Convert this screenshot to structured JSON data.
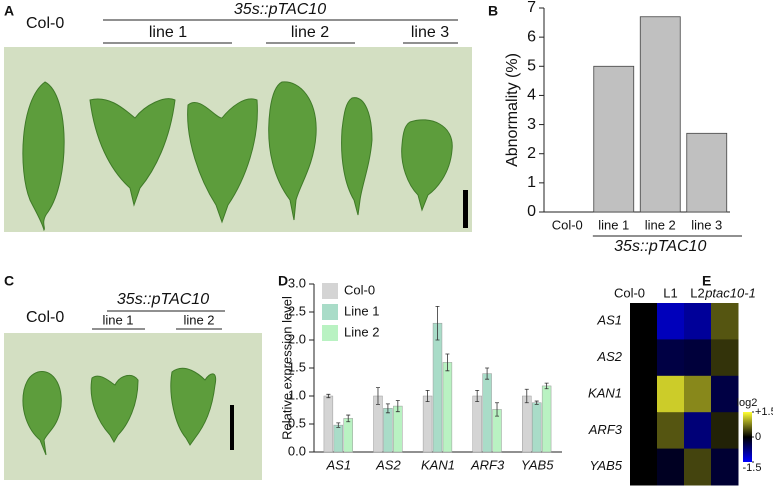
{
  "panels": {
    "A": {
      "label": "A",
      "control": "Col-0",
      "construct": "35s::pTAC10",
      "lines": [
        "line 1",
        "line 2",
        "line 3"
      ]
    },
    "C": {
      "label": "C",
      "control": "Col-0",
      "construct": "35s::pTAC10",
      "lines": [
        "line 1",
        "line 2"
      ]
    }
  },
  "chart_data": [
    {
      "type": "bar",
      "panel_label": "B",
      "ylabel": "Abnormality (%)",
      "categories": [
        "Col-0",
        "line 1",
        "line 2",
        "line 3"
      ],
      "values": [
        0,
        5,
        6.7,
        2.7
      ],
      "x_group_label": "35s::pTAC10",
      "color": "#c0c0c0",
      "ylim": [
        0,
        7
      ],
      "yticks": [
        0,
        1,
        2,
        3,
        4,
        5,
        6,
        7
      ]
    },
    {
      "type": "bar",
      "panel_label": "D",
      "ylabel": "Relative expression level",
      "categories": [
        "AS1",
        "AS2",
        "KAN1",
        "ARF3",
        "YAB5"
      ],
      "series": [
        {
          "name": "Col-0",
          "color": "#d4d4d4",
          "values": [
            1.0,
            1.0,
            1.0,
            1.0,
            1.0
          ],
          "errors": [
            0.03,
            0.15,
            0.1,
            0.1,
            0.12
          ]
        },
        {
          "name": "Line 1",
          "color": "#a9dcc8",
          "values": [
            0.48,
            0.78,
            2.3,
            1.4,
            0.88
          ],
          "errors": [
            0.04,
            0.08,
            0.3,
            0.1,
            0.03
          ]
        },
        {
          "name": "Line 2",
          "color": "#b9f2c2",
          "values": [
            0.6,
            0.82,
            1.6,
            0.76,
            1.18
          ],
          "errors": [
            0.06,
            0.1,
            0.15,
            0.12,
            0.05
          ]
        }
      ],
      "ylim": [
        0,
        3
      ],
      "yticks": [
        {
          "value": 0,
          "label": "0.0"
        },
        {
          "value": 0.5,
          "label": "0.5"
        },
        {
          "value": 1,
          "label": "1.0"
        },
        {
          "value": 1.5,
          "label": "1.5"
        },
        {
          "value": 2,
          "label": "2.0"
        },
        {
          "value": 2.5,
          "label": "2.5"
        },
        {
          "value": 3,
          "label": "3.0"
        }
      ],
      "legend": "top-left"
    },
    {
      "type": "heatmap",
      "panel_label": "E",
      "columns": [
        "Col-0",
        "L1",
        "L2",
        "ptac10-1"
      ],
      "rows": [
        "AS1",
        "AS2",
        "KAN1",
        "ARF3",
        "YAB5"
      ],
      "values": [
        [
          0,
          -1.1,
          -0.9,
          0.5
        ],
        [
          0,
          -0.4,
          -0.35,
          0.3
        ],
        [
          0,
          1.2,
          0.8,
          -0.4
        ],
        [
          0,
          0.5,
          -0.7,
          0.2
        ],
        [
          0,
          -0.2,
          0.4,
          -0.3
        ]
      ],
      "zlim": [
        -1.5,
        1.5
      ],
      "colors": {
        "low": "#0000ff",
        "mid": "#000000",
        "high": "#ffff33"
      },
      "colorbar_label": "log2",
      "colorbar_ticks": [
        {
          "value": 1.5,
          "label": "+1.5"
        },
        0,
        {
          "value": -1.5,
          "label": "-1.5"
        }
      ]
    }
  ]
}
